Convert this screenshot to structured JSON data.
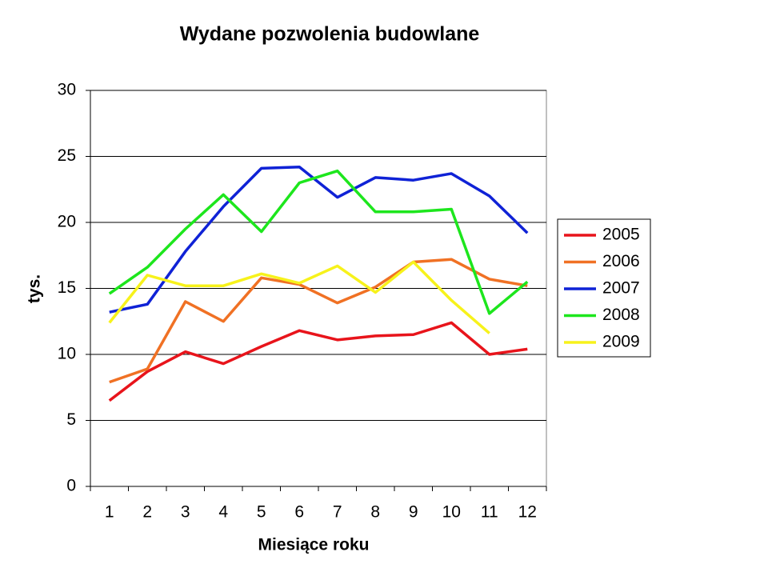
{
  "chart_data": {
    "type": "line",
    "title": "Wydane pozwolenia budowlane",
    "x_label": "Miesiące roku",
    "y_label": "tys.",
    "categories": [
      "1",
      "2",
      "3",
      "4",
      "5",
      "6",
      "7",
      "8",
      "9",
      "10",
      "11",
      "12"
    ],
    "series": [
      {
        "name": "2005",
        "color": "#e8141b",
        "values": [
          6.5,
          8.7,
          10.2,
          9.3,
          10.6,
          11.8,
          11.1,
          11.4,
          11.5,
          12.4,
          10.0,
          10.4
        ]
      },
      {
        "name": "2006",
        "color": "#f07124",
        "values": [
          7.9,
          8.9,
          14.0,
          12.5,
          15.8,
          15.3,
          13.9,
          15.1,
          17.0,
          17.2,
          15.7,
          15.2
        ]
      },
      {
        "name": "2007",
        "color": "#0f22d6",
        "values": [
          13.2,
          13.8,
          17.8,
          21.2,
          24.1,
          24.2,
          21.9,
          23.4,
          23.2,
          23.7,
          22.0,
          19.2
        ]
      },
      {
        "name": "2008",
        "color": "#1de61d",
        "values": [
          14.6,
          16.6,
          19.5,
          22.1,
          19.3,
          23.0,
          23.9,
          20.8,
          20.8,
          21.0,
          13.1,
          15.5
        ]
      },
      {
        "name": "2009",
        "color": "#f7f21b",
        "values": [
          12.4,
          16.0,
          15.2,
          15.2,
          16.1,
          15.4,
          16.7,
          14.7,
          17.0,
          14.1,
          11.6,
          null
        ]
      }
    ],
    "ylim": [
      0,
      30
    ],
    "yticks": [
      0,
      5,
      10,
      15,
      20,
      25,
      30
    ],
    "grid": true,
    "legend": "right"
  }
}
